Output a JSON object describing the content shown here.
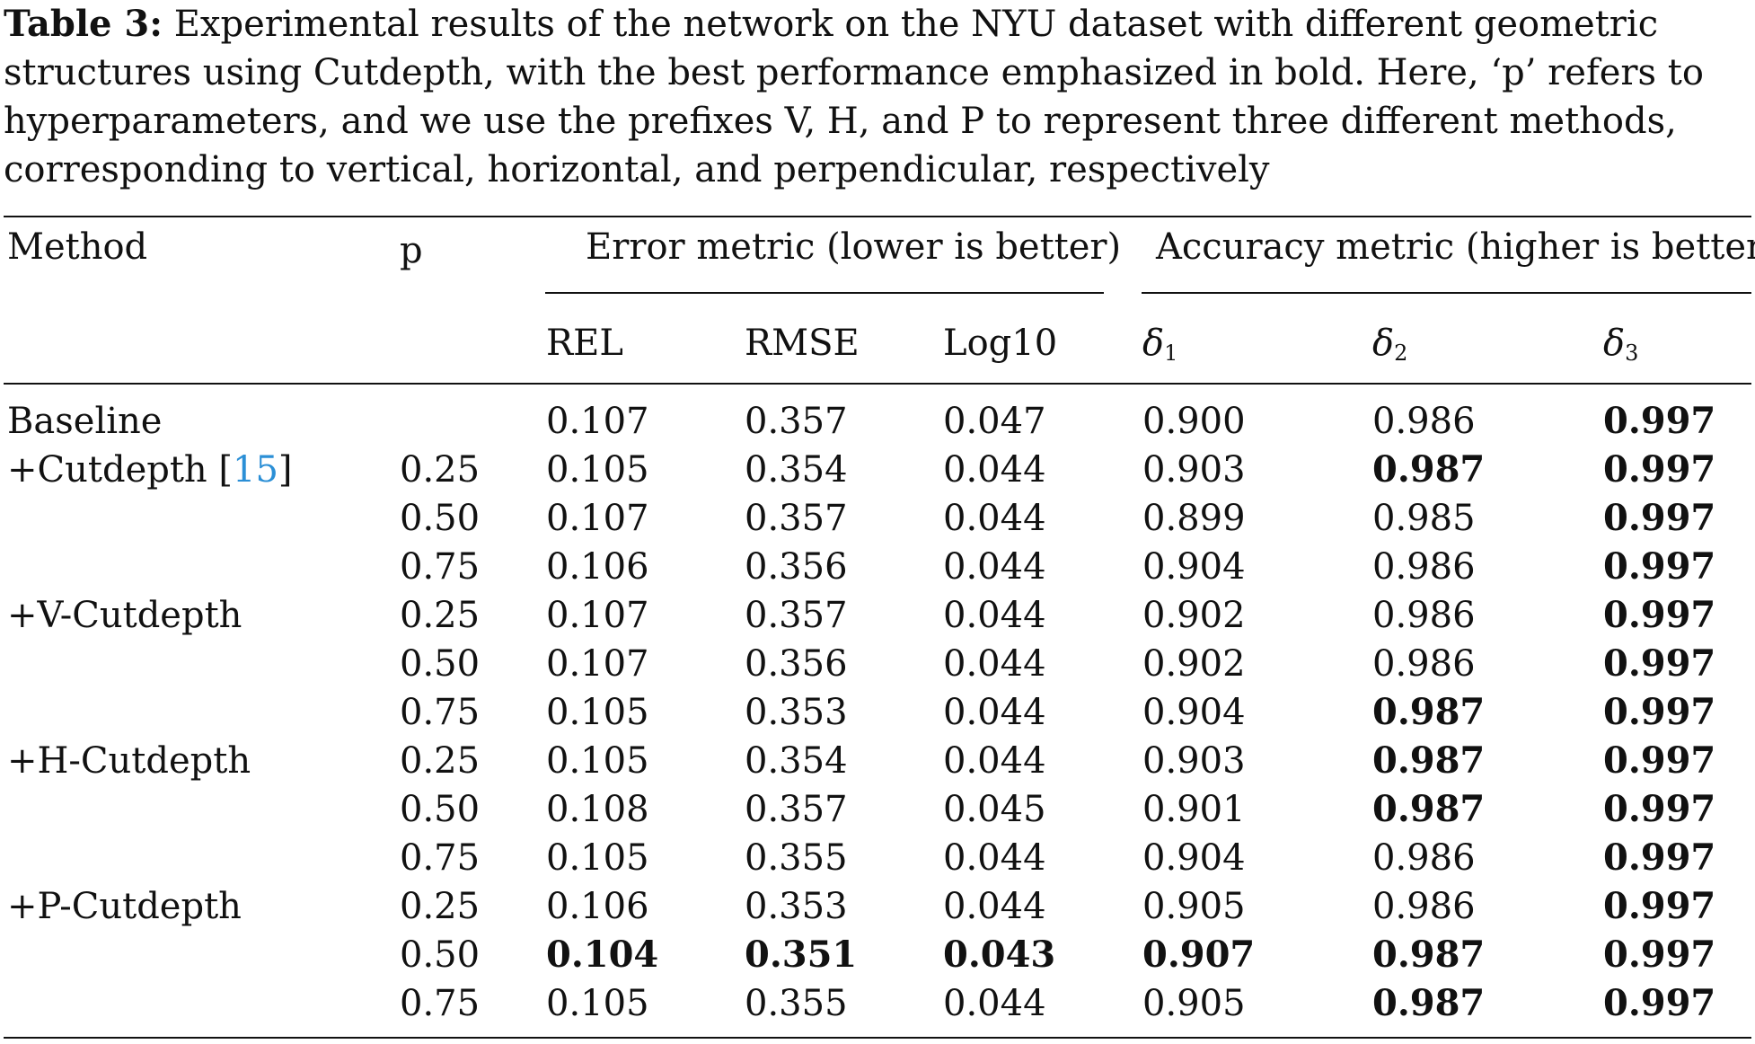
{
  "caption": {
    "label": "Table 3:",
    "text": " Experimental results of the network on the NYU dataset with different geometric structures using Cutdepth, with the best performance emphasized in bold. Here, ‘p’ refers to hyperparameters, and we use the prefixes V, H, and P to represent three different methods, corresponding to vertical, horizontal, and perpendicular, respectively"
  },
  "header": {
    "method": "Method",
    "p": "p",
    "error_group": "Error metric (lower is better)",
    "accuracy_group": "Accuracy metric (higher is better)",
    "rel": "REL",
    "rmse": "RMSE",
    "log10": "Log10",
    "d1_sym": "δ",
    "d1_sub": "1",
    "d2_sym": "δ",
    "d2_sub": "2",
    "d3_sym": "δ",
    "d3_sub": "3"
  },
  "rows": [
    {
      "method": "Baseline",
      "cite": "",
      "p": "",
      "rel": "0.107",
      "rmse": "0.357",
      "log10": "0.047",
      "d1": "0.900",
      "d2": "0.986",
      "d3": "0.997",
      "bold": [
        false,
        false,
        false,
        false,
        false,
        true
      ]
    },
    {
      "method": "+Cutdepth [",
      "cite": "15",
      "p": "0.25",
      "rel": "0.105",
      "rmse": "0.354",
      "log10": "0.044",
      "d1": "0.903",
      "d2": "0.987",
      "d3": "0.997",
      "bold": [
        false,
        false,
        false,
        false,
        true,
        true
      ]
    },
    {
      "method": "",
      "cite": "",
      "p": "0.50",
      "rel": "0.107",
      "rmse": "0.357",
      "log10": "0.044",
      "d1": "0.899",
      "d2": "0.985",
      "d3": "0.997",
      "bold": [
        false,
        false,
        false,
        false,
        false,
        true
      ]
    },
    {
      "method": "",
      "cite": "",
      "p": "0.75",
      "rel": "0.106",
      "rmse": "0.356",
      "log10": "0.044",
      "d1": "0.904",
      "d2": "0.986",
      "d3": "0.997",
      "bold": [
        false,
        false,
        false,
        false,
        false,
        true
      ]
    },
    {
      "method": "+V-Cutdepth",
      "cite": "",
      "p": "0.25",
      "rel": "0.107",
      "rmse": "0.357",
      "log10": "0.044",
      "d1": "0.902",
      "d2": "0.986",
      "d3": "0.997",
      "bold": [
        false,
        false,
        false,
        false,
        false,
        true
      ]
    },
    {
      "method": "",
      "cite": "",
      "p": "0.50",
      "rel": "0.107",
      "rmse": "0.356",
      "log10": "0.044",
      "d1": "0.902",
      "d2": "0.986",
      "d3": "0.997",
      "bold": [
        false,
        false,
        false,
        false,
        false,
        true
      ]
    },
    {
      "method": "",
      "cite": "",
      "p": "0.75",
      "rel": "0.105",
      "rmse": "0.353",
      "log10": "0.044",
      "d1": "0.904",
      "d2": "0.987",
      "d3": "0.997",
      "bold": [
        false,
        false,
        false,
        false,
        true,
        true
      ]
    },
    {
      "method": "+H-Cutdepth",
      "cite": "",
      "p": "0.25",
      "rel": "0.105",
      "rmse": "0.354",
      "log10": "0.044",
      "d1": "0.903",
      "d2": "0.987",
      "d3": "0.997",
      "bold": [
        false,
        false,
        false,
        false,
        true,
        true
      ]
    },
    {
      "method": "",
      "cite": "",
      "p": "0.50",
      "rel": "0.108",
      "rmse": "0.357",
      "log10": "0.045",
      "d1": "0.901",
      "d2": "0.987",
      "d3": "0.997",
      "bold": [
        false,
        false,
        false,
        false,
        true,
        true
      ]
    },
    {
      "method": "",
      "cite": "",
      "p": "0.75",
      "rel": "0.105",
      "rmse": "0.355",
      "log10": "0.044",
      "d1": "0.904",
      "d2": "0.986",
      "d3": "0.997",
      "bold": [
        false,
        false,
        false,
        false,
        false,
        true
      ]
    },
    {
      "method": "+P-Cutdepth",
      "cite": "",
      "p": "0.25",
      "rel": "0.106",
      "rmse": "0.353",
      "log10": "0.044",
      "d1": "0.905",
      "d2": "0.986",
      "d3": "0.997",
      "bold": [
        false,
        false,
        false,
        false,
        false,
        true
      ]
    },
    {
      "method": "",
      "cite": "",
      "p": "0.50",
      "rel": "0.104",
      "rmse": "0.351",
      "log10": "0.043",
      "d1": "0.907",
      "d2": "0.987",
      "d3": "0.997",
      "bold": [
        true,
        true,
        true,
        true,
        true,
        true
      ]
    },
    {
      "method": "",
      "cite": "",
      "p": "0.75",
      "rel": "0.105",
      "rmse": "0.355",
      "log10": "0.044",
      "d1": "0.905",
      "d2": "0.987",
      "d3": "0.997",
      "bold": [
        false,
        false,
        false,
        false,
        true,
        true
      ]
    }
  ],
  "colors": {
    "citation": "#2b8fd6",
    "text": "#111111"
  }
}
